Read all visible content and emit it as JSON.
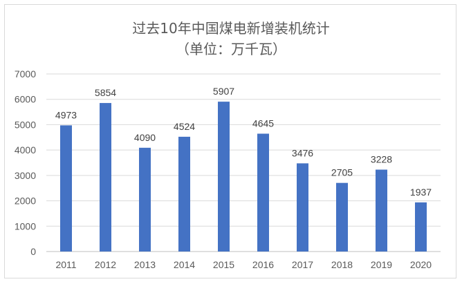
{
  "chart_data": {
    "type": "bar",
    "title": "过去10年中国煤电新增装机统计",
    "subtitle": "（单位：万千瓦）",
    "categories": [
      "2011",
      "2012",
      "2013",
      "2014",
      "2015",
      "2016",
      "2017",
      "2018",
      "2019",
      "2020"
    ],
    "values": [
      4973,
      5854,
      4090,
      4524,
      5907,
      4645,
      3476,
      2705,
      3228,
      1937
    ],
    "ylim": [
      0,
      7000
    ],
    "yticks": [
      0,
      1000,
      2000,
      3000,
      4000,
      5000,
      6000,
      7000
    ],
    "ytick_labels": [
      "0",
      "1000",
      "2000",
      "3000",
      "4000",
      "5000",
      "6000",
      "7000"
    ],
    "bar_color": "#4472c4",
    "grid": true,
    "legend": "none"
  }
}
